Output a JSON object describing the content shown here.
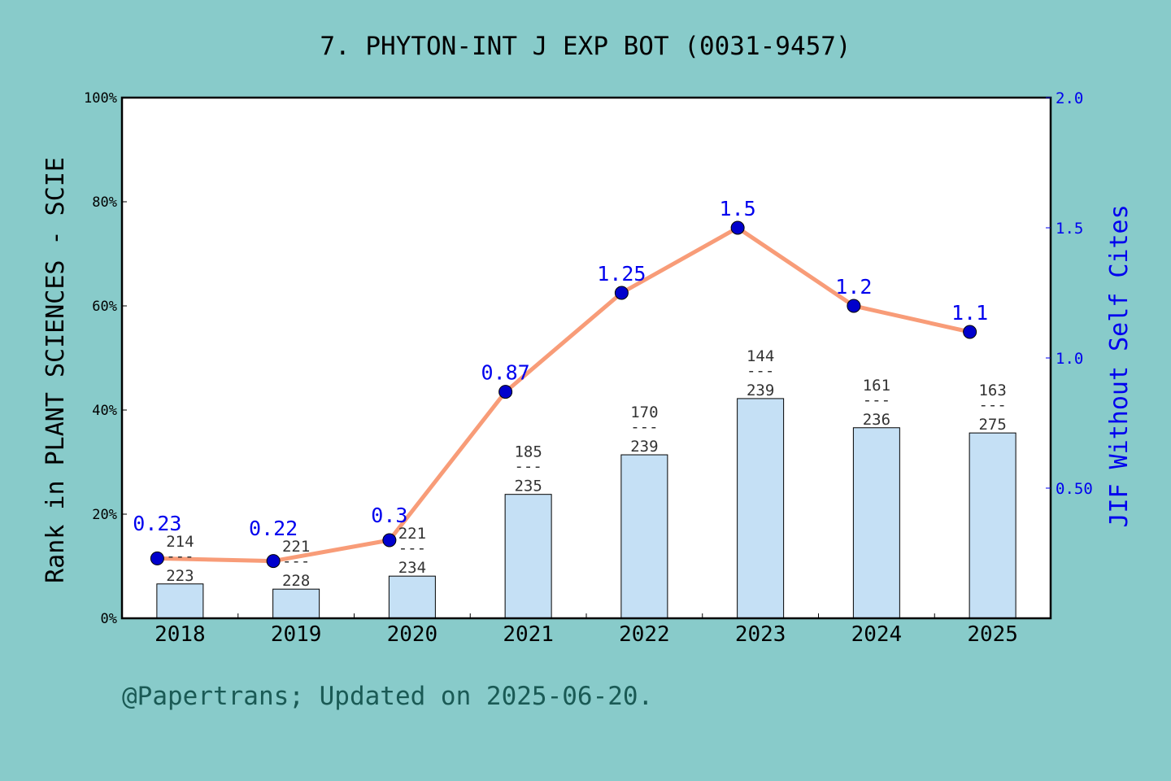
{
  "chart_data": {
    "type": "bar+line",
    "title": "7. PHYTON-INT J EXP BOT (0031-9457)",
    "ylabel": "Rank in PLANT SCIENCES - SCIE",
    "y2label": "JIF Without Self Cites",
    "footer": "@Papertrans; Updated on 2025-06-20.",
    "categories": [
      "2018",
      "2019",
      "2020",
      "2021",
      "2022",
      "2023",
      "2024",
      "2025"
    ],
    "ylim": [
      0,
      100
    ],
    "yticks": [
      "0%",
      "20%",
      "40%",
      "60%",
      "80%",
      "100%"
    ],
    "y2lim": [
      0,
      2.0
    ],
    "y2ticks": [
      {
        "v": 0.5,
        "label": "0.50"
      },
      {
        "v": 1.0,
        "label": "1.0"
      },
      {
        "v": 1.5,
        "label": "1.5"
      },
      {
        "v": 2.0,
        "label": "2.0"
      }
    ],
    "bars": {
      "values_percent": [
        6.6,
        5.6,
        8.1,
        23.8,
        31.4,
        42.2,
        36.6,
        35.6
      ],
      "rank": [
        "214",
        "221",
        "221",
        "185",
        "170",
        "144",
        "161",
        "163"
      ],
      "total": [
        "223",
        "228",
        "234",
        "235",
        "239",
        "239",
        "236",
        "275"
      ],
      "color": "#c5e0f5"
    },
    "line": {
      "values": [
        0.23,
        0.22,
        0.3,
        0.87,
        1.25,
        1.5,
        1.2,
        1.1
      ],
      "labels": [
        "0.23",
        "0.22",
        "0.3",
        "0.87",
        "1.25",
        "1.5",
        "1.2",
        "1.1"
      ],
      "line_color": "#f89c78",
      "marker_color": "#0000cc",
      "label_color": "#0000ee"
    },
    "background": "#88cbca"
  }
}
